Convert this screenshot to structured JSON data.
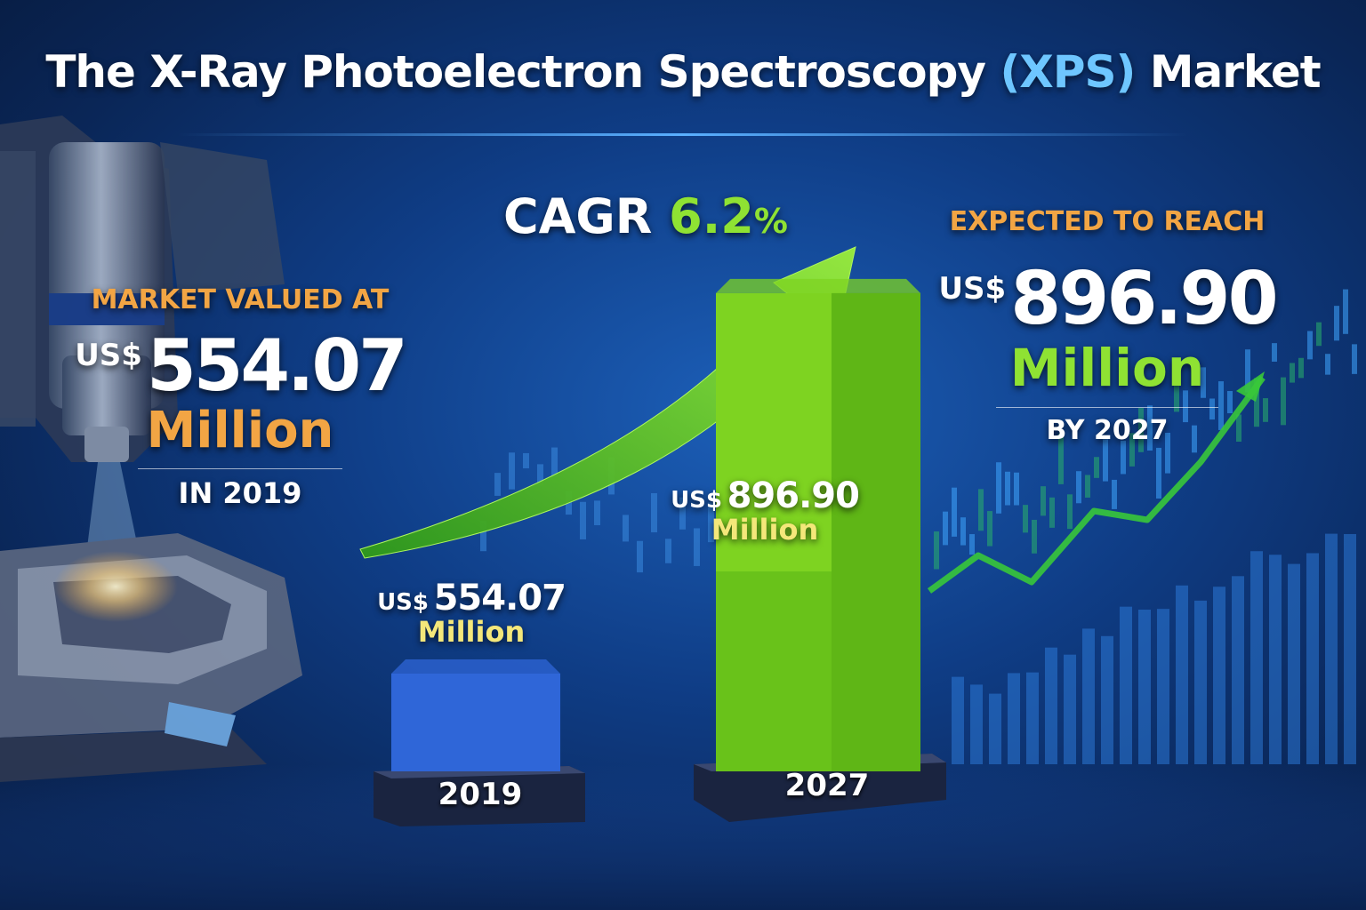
{
  "title": {
    "main": "The X-Ray Photoelectron Spectroscopy",
    "accent": "(XPS)",
    "tail": "Market"
  },
  "left_callout": {
    "kicker": "MARKET VALUED AT",
    "currency": "US$",
    "amount": "554.07",
    "unit": "Million",
    "period": "IN 2019"
  },
  "right_callout": {
    "kicker": "EXPECTED TO REACH",
    "currency": "US$",
    "amount": "896.90",
    "unit": "Million",
    "period": "BY 2027"
  },
  "cagr": {
    "label": "CAGR",
    "value": "6.2",
    "suffix": "%"
  },
  "colors": {
    "accent_blue": "#6ec6ff",
    "kicker_orange": "#f2a544",
    "growth_green": "#8fe233",
    "bar_2019": "#2f66d8",
    "bar_2027": "#7ed321"
  },
  "chart_data": {
    "type": "bar",
    "categories": [
      "2019",
      "2027"
    ],
    "values": [
      554.07,
      896.9
    ],
    "value_labels": [
      {
        "currency": "US$",
        "amount": "554.07",
        "unit": "Million"
      },
      {
        "currency": "US$",
        "amount": "896.90",
        "unit": "Million"
      }
    ],
    "bar_colors": [
      "#2f66d8",
      "#7ed321"
    ],
    "ylim": [
      0,
      1000
    ],
    "grid": false,
    "title": "",
    "xlabel": "",
    "ylabel": ""
  }
}
